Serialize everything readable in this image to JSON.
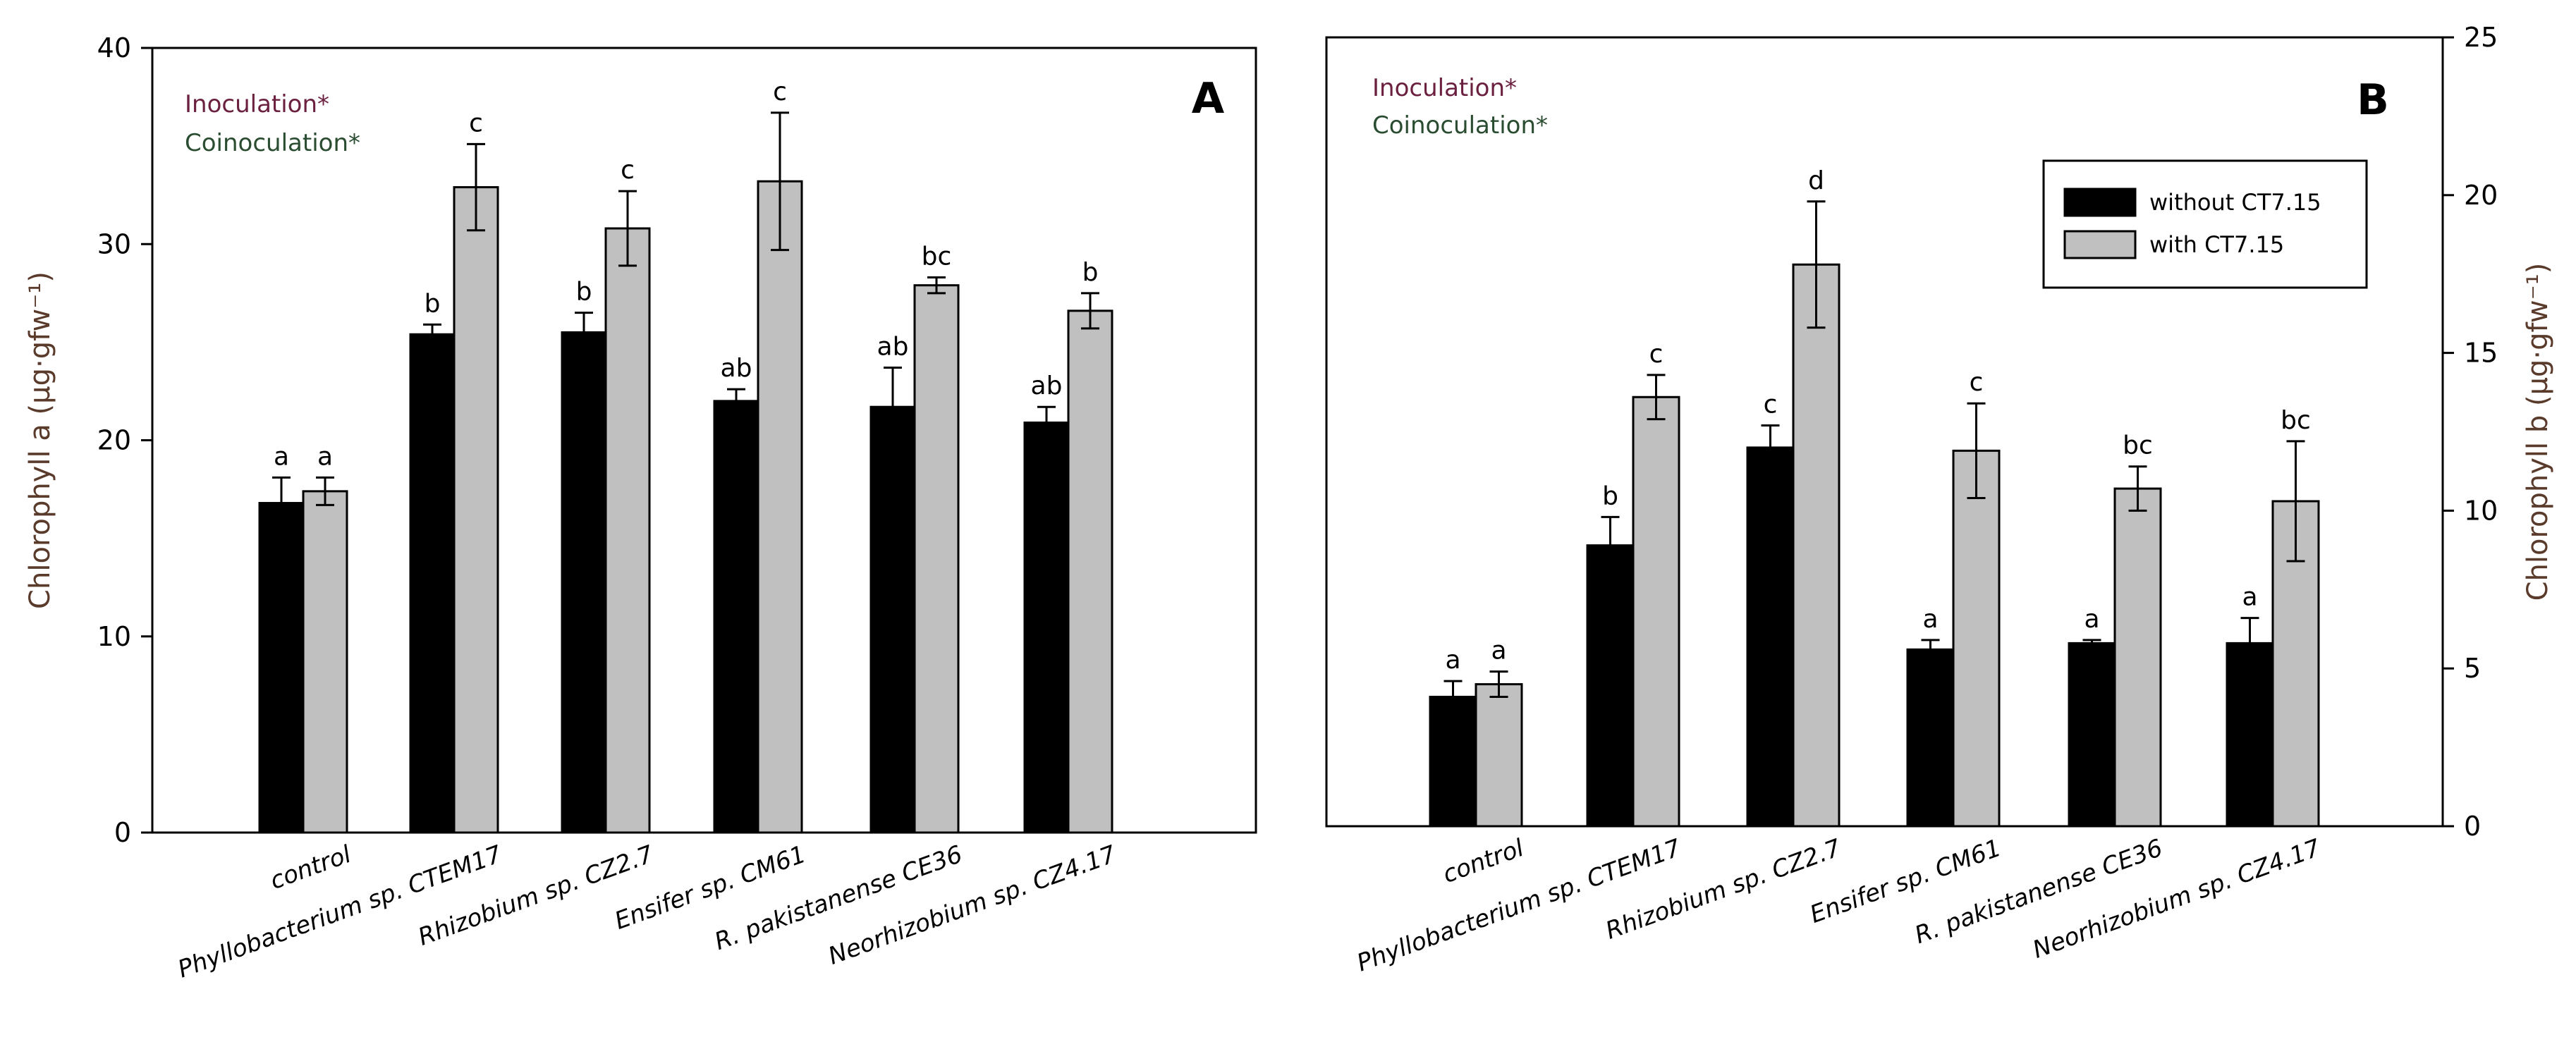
{
  "chart_data": [
    {
      "type": "bar",
      "panel_label": "A",
      "ylabel": "Chlorophyll a (μg·gfw⁻¹)",
      "ylim": [
        0,
        40
      ],
      "yticks": [
        0,
        10,
        20,
        30,
        40
      ],
      "y_axis_side": "left",
      "annotations": [
        "Inoculation*",
        "Coinoculation*"
      ],
      "categories": [
        "control",
        "Phyllobacterium sp. CTEM17",
        "Rhizobium sp. CZ2.7",
        "Ensifer sp. CM61",
        "R. pakistanense CE36",
        "Neorhizobium sp. CZ4.17"
      ],
      "series": [
        {
          "name": "without CT7.15",
          "color": "#000000",
          "values": [
            16.8,
            25.4,
            25.5,
            22.0,
            21.7,
            20.9
          ],
          "errors": [
            1.3,
            0.5,
            1.0,
            0.6,
            2.0,
            0.8
          ],
          "letters": [
            "a",
            "b",
            "b",
            "ab",
            "ab",
            "ab"
          ]
        },
        {
          "name": "with CT7.15",
          "color": "#c0c0c0",
          "values": [
            17.4,
            32.9,
            30.8,
            33.2,
            27.9,
            26.6
          ],
          "errors": [
            0.7,
            2.2,
            1.9,
            3.5,
            0.4,
            0.9
          ],
          "letters": [
            "a",
            "c",
            "c",
            "c",
            "bc",
            "b"
          ]
        }
      ]
    },
    {
      "type": "bar",
      "panel_label": "B",
      "ylabel": "Chlorophyll b (μg·gfw⁻¹)",
      "ylim": [
        0,
        25
      ],
      "yticks": [
        0,
        5,
        10,
        15,
        20,
        25
      ],
      "y_axis_side": "right",
      "annotations": [
        "Inoculation*",
        "Coinoculation*"
      ],
      "legend": {
        "position": "top-right",
        "entries": [
          "without CT7.15",
          "with CT7.15"
        ]
      },
      "categories": [
        "control",
        "Phyllobacterium sp. CTEM17",
        "Rhizobium sp. CZ2.7",
        "Ensifer sp. CM61",
        "R. pakistanense CE36",
        "Neorhizobium sp. CZ4.17"
      ],
      "series": [
        {
          "name": "without CT7.15",
          "color": "#000000",
          "values": [
            4.1,
            8.9,
            12.0,
            5.6,
            5.8,
            5.8
          ],
          "errors": [
            0.5,
            0.9,
            0.7,
            0.3,
            0.1,
            0.8
          ],
          "letters": [
            "a",
            "b",
            "c",
            "a",
            "a",
            "a"
          ]
        },
        {
          "name": "with CT7.15",
          "color": "#c0c0c0",
          "values": [
            4.5,
            13.6,
            17.8,
            11.9,
            10.7,
            10.3
          ],
          "errors": [
            0.4,
            0.7,
            2.0,
            1.5,
            0.7,
            1.9
          ],
          "letters": [
            "a",
            "c",
            "d",
            "c",
            "bc",
            "bc"
          ]
        }
      ]
    }
  ]
}
